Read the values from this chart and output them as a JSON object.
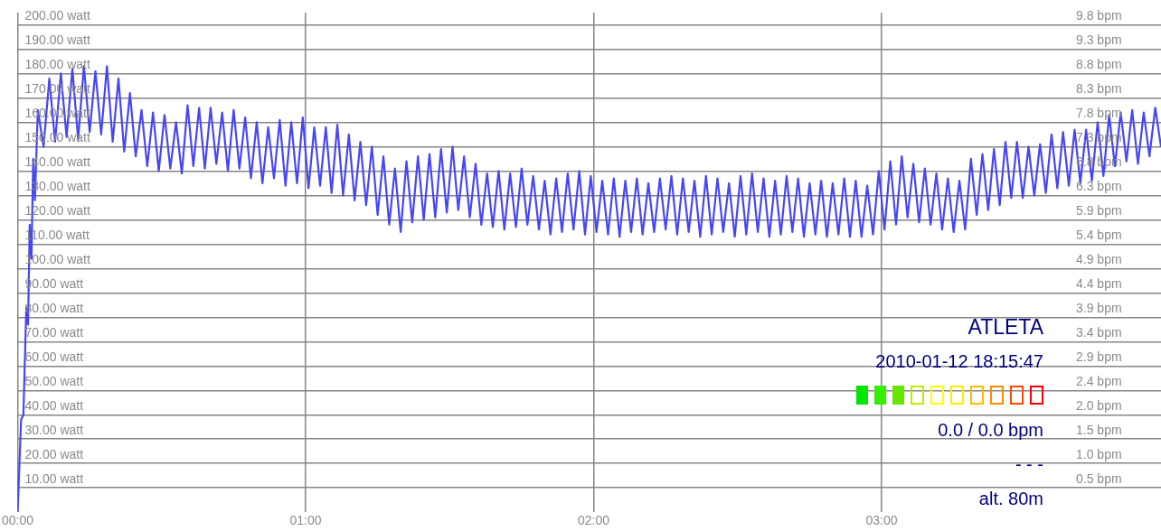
{
  "chart_data": {
    "type": "line",
    "x": [
      0,
      0.012,
      0.02,
      0.03,
      0.036,
      0.042,
      0.048,
      0.054,
      0.06,
      0.07,
      0.09,
      0.11,
      0.13,
      0.15,
      0.17,
      0.19,
      0.21,
      0.23,
      0.25,
      0.27,
      0.29,
      0.31,
      0.33,
      0.35,
      0.37,
      0.39,
      0.41,
      0.43,
      0.45,
      0.47,
      0.49,
      0.51,
      0.53,
      0.55,
      0.57,
      0.59,
      0.61,
      0.63,
      0.65,
      0.67,
      0.69,
      0.71,
      0.73,
      0.75,
      0.77,
      0.79,
      0.81,
      0.83,
      0.85,
      0.87,
      0.89,
      0.91,
      0.93,
      0.95,
      0.97,
      0.99,
      1.01,
      1.03,
      1.05,
      1.07,
      1.09,
      1.11,
      1.13,
      1.15,
      1.17,
      1.19,
      1.21,
      1.23,
      1.25,
      1.27,
      1.29,
      1.31,
      1.33,
      1.35,
      1.37,
      1.39,
      1.41,
      1.43,
      1.45,
      1.47,
      1.49,
      1.51,
      1.53,
      1.55,
      1.57,
      1.59,
      1.61,
      1.63,
      1.65,
      1.67,
      1.69,
      1.71,
      1.73,
      1.75,
      1.77,
      1.79,
      1.81,
      1.83,
      1.85,
      1.87,
      1.89,
      1.91,
      1.93,
      1.95,
      1.97,
      1.99,
      2.01,
      2.03,
      2.05,
      2.07,
      2.09,
      2.11,
      2.13,
      2.15,
      2.17,
      2.19,
      2.21,
      2.23,
      2.25,
      2.27,
      2.29,
      2.31,
      2.33,
      2.35,
      2.37,
      2.39,
      2.41,
      2.43,
      2.45,
      2.47,
      2.49,
      2.51,
      2.53,
      2.55,
      2.57,
      2.59,
      2.61,
      2.63,
      2.65,
      2.67,
      2.69,
      2.71,
      2.73,
      2.75,
      2.77,
      2.79,
      2.81,
      2.83,
      2.85,
      2.87,
      2.89,
      2.91,
      2.93,
      2.95,
      2.97,
      2.99,
      3.01,
      3.03,
      3.05,
      3.07,
      3.09,
      3.11,
      3.13,
      3.15,
      3.17,
      3.19,
      3.21,
      3.23,
      3.25,
      3.27,
      3.29,
      3.31,
      3.33,
      3.35,
      3.37,
      3.39,
      3.41,
      3.43,
      3.45,
      3.47,
      3.49,
      3.51,
      3.53,
      3.55,
      3.57,
      3.59,
      3.61,
      3.63,
      3.65,
      3.67,
      3.69,
      3.71,
      3.73,
      3.75,
      3.77,
      3.79,
      3.81,
      3.83,
      3.85,
      3.87,
      3.89,
      3.91,
      3.93,
      3.95,
      3.97
    ],
    "series": [
      {
        "color": "#4646f5",
        "values": [
          0,
          38,
          40,
          84,
          77,
          118,
          104,
          145,
          128,
          165,
          150,
          178,
          152,
          180,
          154,
          182,
          153,
          183,
          156,
          181,
          155,
          183,
          152,
          178,
          148,
          172,
          146,
          165,
          142,
          164,
          140,
          163,
          141,
          160,
          139,
          167,
          142,
          166,
          141,
          166,
          143,
          164,
          140,
          165,
          141,
          162,
          137,
          160,
          135,
          158,
          137,
          161,
          134,
          160,
          135,
          162,
          133,
          158,
          134,
          158,
          131,
          159,
          130,
          155,
          128,
          152,
          126,
          150,
          122,
          146,
          118,
          141,
          115,
          144,
          119,
          146,
          120,
          147,
          121,
          149,
          123,
          150,
          124,
          146,
          121,
          143,
          118,
          139,
          117,
          140,
          116,
          139,
          117,
          141,
          118,
          138,
          116,
          136,
          114,
          137,
          115,
          139,
          116,
          140,
          114,
          138,
          115,
          136,
          114,
          137,
          113,
          136,
          115,
          137,
          114,
          135,
          115,
          137,
          116,
          138,
          114,
          137,
          115,
          136,
          113,
          138,
          114,
          137,
          115,
          135,
          113,
          138,
          114,
          139,
          115,
          137,
          113,
          136,
          114,
          138,
          115,
          137,
          113,
          135,
          114,
          136,
          113,
          135,
          114,
          137,
          113,
          136,
          113,
          134,
          114,
          140,
          116,
          144,
          118,
          146,
          121,
          143,
          119,
          141,
          118,
          139,
          116,
          137,
          115,
          136,
          116,
          145,
          122,
          147,
          124,
          149,
          126,
          152,
          129,
          152,
          129,
          150,
          130,
          151,
          131,
          155,
          133,
          156,
          134,
          157,
          135,
          157,
          136,
          160,
          138,
          163,
          142,
          164,
          144,
          165,
          143,
          164,
          146,
          166,
          150
        ]
      }
    ],
    "xlim": [
      0,
      3.97
    ],
    "xticks": [
      {
        "value": 0,
        "label": "00:00"
      },
      {
        "value": 1,
        "label": "01:00"
      },
      {
        "value": 2,
        "label": "02:00"
      },
      {
        "value": 3,
        "label": "03:00"
      }
    ],
    "ylim": [
      0,
      205
    ],
    "yticks": [
      {
        "value": 10,
        "label": "10.00 watt"
      },
      {
        "value": 20,
        "label": "20.00 watt"
      },
      {
        "value": 30,
        "label": "30.00 watt"
      },
      {
        "value": 40,
        "label": "40.00 watt"
      },
      {
        "value": 50,
        "label": "50.00 watt"
      },
      {
        "value": 60,
        "label": "60.00 watt"
      },
      {
        "value": 70,
        "label": "70.00 watt"
      },
      {
        "value": 80,
        "label": "80.00 watt"
      },
      {
        "value": 90,
        "label": "90.00 watt"
      },
      {
        "value": 100,
        "label": "100.00 watt"
      },
      {
        "value": 110,
        "label": "110.00 watt"
      },
      {
        "value": 120,
        "label": "120.00 watt"
      },
      {
        "value": 130,
        "label": "130.00 watt"
      },
      {
        "value": 140,
        "label": "140.00 watt"
      },
      {
        "value": 150,
        "label": "150.00 watt"
      },
      {
        "value": 160,
        "label": "160.00 watt"
      },
      {
        "value": 170,
        "label": "170.00 watt"
      },
      {
        "value": 180,
        "label": "180.00 watt"
      },
      {
        "value": 190,
        "label": "190.00 watt"
      },
      {
        "value": 200,
        "label": "200.00 watt"
      }
    ],
    "y2lim": [
      0,
      10.004
    ],
    "y2ticks": [
      {
        "value": 0.488,
        "label": "0.5 bpm"
      },
      {
        "value": 0.976,
        "label": "1.0 bpm"
      },
      {
        "value": 1.464,
        "label": "1.5 bpm"
      },
      {
        "value": 1.952,
        "label": "2.0 bpm"
      },
      {
        "value": 2.44,
        "label": "2.4 bpm"
      },
      {
        "value": 2.928,
        "label": "2.9 bpm"
      },
      {
        "value": 3.416,
        "label": "3.4 bpm"
      },
      {
        "value": 3.904,
        "label": "3.9 bpm"
      },
      {
        "value": 4.392,
        "label": "4.4 bpm"
      },
      {
        "value": 4.88,
        "label": "4.9 bpm"
      },
      {
        "value": 5.368,
        "label": "5.4 bpm"
      },
      {
        "value": 5.856,
        "label": "5.9 bpm"
      },
      {
        "value": 6.344,
        "label": "6.3 bpm"
      },
      {
        "value": 6.832,
        "label": "6.8 bpm"
      },
      {
        "value": 7.32,
        "label": "7.3 bpm"
      },
      {
        "value": 7.808,
        "label": "7.8 bpm"
      },
      {
        "value": 8.296,
        "label": "8.3 bpm"
      },
      {
        "value": 8.784,
        "label": "8.8 bpm"
      },
      {
        "value": 9.272,
        "label": "9.3 bpm"
      },
      {
        "value": 9.76,
        "label": "9.8 bpm"
      }
    ],
    "grid": true,
    "marker": "none",
    "line_style": "solid",
    "annotations": [
      "ATLETA",
      "2010-01-12 18:15:47",
      "0.0 / 0.0 bpm",
      "- - -",
      "alt. 80m"
    ]
  }
}
